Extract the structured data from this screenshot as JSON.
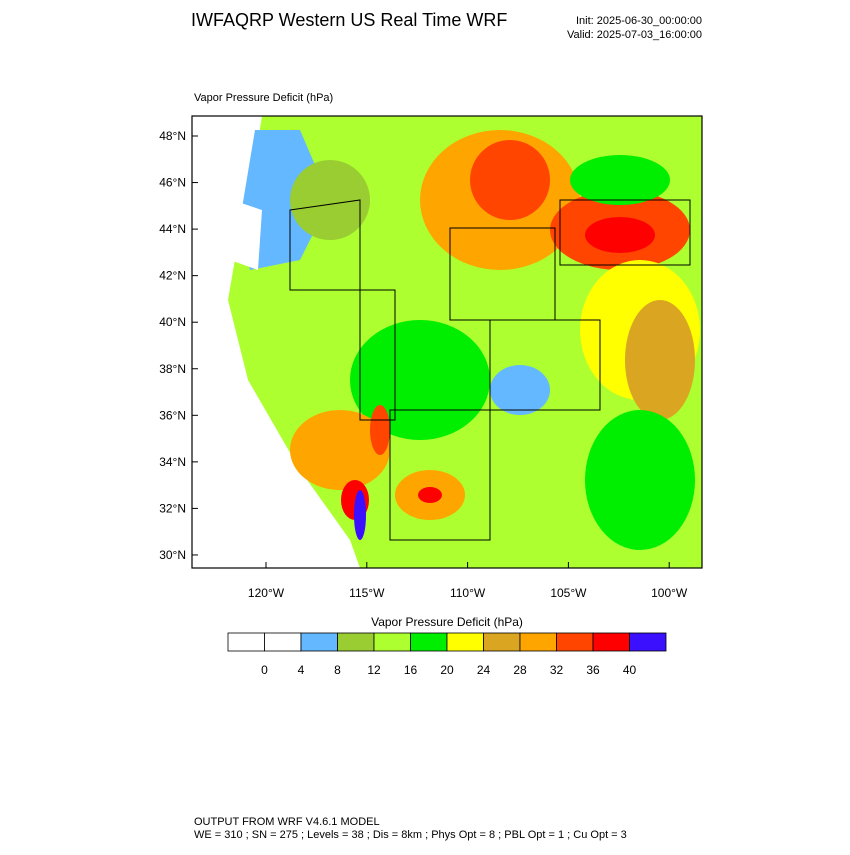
{
  "header": {
    "title": "IWFAQRP Western US Real Time WRF",
    "init": "Init: 2025-06-30_00:00:00",
    "valid": "Valid: 2025-07-03_16:00:00"
  },
  "map": {
    "label": "Vapor Pressure Deficit   (hPa)",
    "lat_labels": [
      "48°N",
      "46°N",
      "44°N",
      "42°N",
      "40°N",
      "38°N",
      "36°N",
      "34°N",
      "32°N",
      "30°N"
    ],
    "lon_labels": [
      "120°W",
      "115°W",
      "110°W",
      "105°W",
      "100°W"
    ]
  },
  "colorbar": {
    "title": "Vapor Pressure Deficit  (hPa)",
    "levels": [
      0,
      4,
      8,
      12,
      16,
      20,
      24,
      28,
      32,
      36,
      40
    ],
    "colors": [
      "#ffffff",
      "#ffffff",
      "#63b8ff",
      "#9acd32",
      "#adff2f",
      "#00ee00",
      "#ffff00",
      "#daa520",
      "#ffa500",
      "#ff4500",
      "#ff0000",
      "#3a10ff"
    ]
  },
  "footer": {
    "line1": "OUTPUT FROM WRF V4.6.1 MODEL",
    "line2": "WE = 310 ; SN = 275 ; Levels = 38 ; Dis = 8km ; Phys Opt = 8 ; PBL Opt = 1 ; Cu Opt = 3"
  }
}
